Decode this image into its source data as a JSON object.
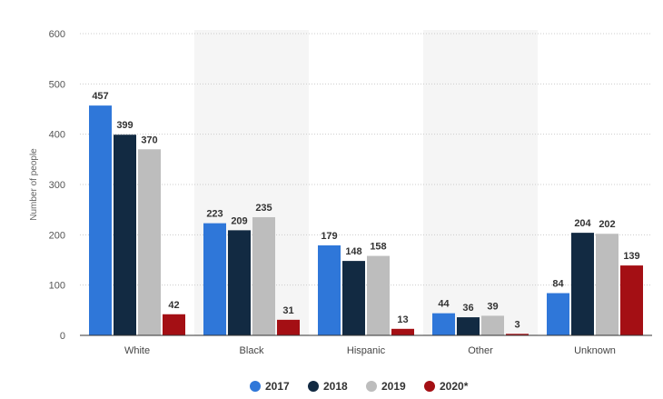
{
  "chart_data": {
    "type": "bar",
    "title": "",
    "xlabel": "",
    "ylabel": "Number of people",
    "ylim": [
      0,
      600
    ],
    "yticks": [
      "0",
      "100",
      "200",
      "300",
      "400",
      "500",
      "600"
    ],
    "categories": [
      "White",
      "Black",
      "Hispanic",
      "Other",
      "Unknown"
    ],
    "series": [
      {
        "name": "2017",
        "color": "#2f77d9",
        "values": [
          457,
          223,
          179,
          44,
          84
        ]
      },
      {
        "name": "2018",
        "color": "#122a42",
        "values": [
          399,
          209,
          148,
          36,
          204
        ]
      },
      {
        "name": "2019",
        "color": "#bdbdbd",
        "values": [
          370,
          235,
          158,
          39,
          202
        ]
      },
      {
        "name": "2020*",
        "color": "#a40f14",
        "values": [
          42,
          31,
          13,
          3,
          139
        ]
      }
    ],
    "legend_position": "bottom-center",
    "grid": true,
    "band_color": "#f5f5f5"
  }
}
